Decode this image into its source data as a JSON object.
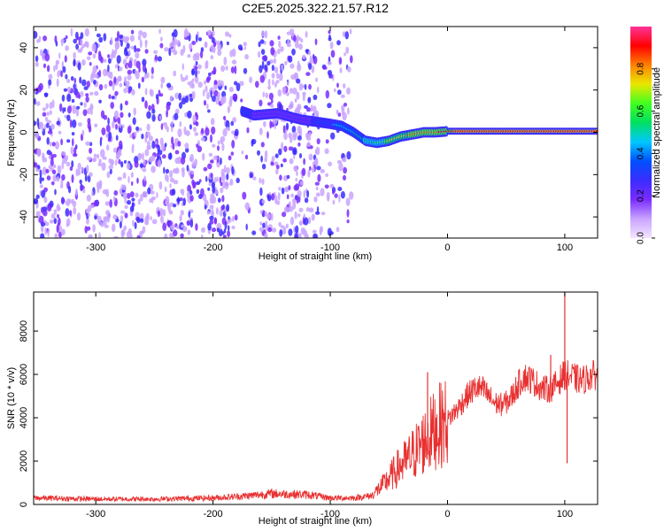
{
  "chart_data": [
    {
      "type": "heatmap",
      "title": "C2E5.2025.322.21.57.R12",
      "xlabel": "Height of straight line (km)",
      "ylabel": "Frequency (Hz)",
      "xlim": [
        -353,
        128
      ],
      "ylim": [
        -50,
        50
      ],
      "xticks": [
        -300,
        -200,
        -100,
        0,
        100
      ],
      "yticks": [
        -40,
        -20,
        0,
        20,
        40
      ],
      "colorbar": {
        "label": "Normalized spectral amplitude",
        "range": [
          0,
          1
        ],
        "ticks": [
          "0.0",
          "0.2",
          "0.4",
          "0.6",
          "0.8"
        ],
        "colors": [
          "#f4e6ff",
          "#c9a4ff",
          "#7a2cff",
          "#3b2cff",
          "#0050ff",
          "#00c8ff",
          "#00e060",
          "#40ff20",
          "#e8e800",
          "#ff8000",
          "#ff0000",
          "#ff3399"
        ]
      },
      "noise_region": {
        "x": [
          -353,
          -82
        ],
        "freq": [
          -50,
          48
        ],
        "amplitude": 0.15
      },
      "signal_track": [
        {
          "x": -175,
          "freq": 10,
          "amplitude": 0.35
        },
        {
          "x": -165,
          "freq": 8,
          "amplitude": 0.3
        },
        {
          "x": -145,
          "freq": 9,
          "amplitude": 0.3
        },
        {
          "x": -125,
          "freq": 6,
          "amplitude": 0.25
        },
        {
          "x": -100,
          "freq": 4,
          "amplitude": 0.4
        },
        {
          "x": -90,
          "freq": 3,
          "amplitude": 0.45
        },
        {
          "x": -80,
          "freq": 0,
          "amplitude": 0.5
        },
        {
          "x": -70,
          "freq": -4,
          "amplitude": 0.55
        },
        {
          "x": -60,
          "freq": -5,
          "amplitude": 0.6
        },
        {
          "x": -50,
          "freq": -4,
          "amplitude": 0.7
        },
        {
          "x": -40,
          "freq": -2,
          "amplitude": 0.75
        },
        {
          "x": -30,
          "freq": -1,
          "amplitude": 0.8
        },
        {
          "x": -20,
          "freq": 0,
          "amplitude": 0.85
        },
        {
          "x": -10,
          "freq": 0,
          "amplitude": 0.85
        },
        {
          "x": 0,
          "freq": 0.5,
          "amplitude": 0.9
        },
        {
          "x": 30,
          "freq": 0.5,
          "amplitude": 0.95
        },
        {
          "x": 60,
          "freq": 0.5,
          "amplitude": 0.95
        },
        {
          "x": 90,
          "freq": 0.5,
          "amplitude": 0.95
        },
        {
          "x": 128,
          "freq": 0.5,
          "amplitude": 0.95
        }
      ]
    },
    {
      "type": "line",
      "title": "",
      "xlabel": "Height of straight line (km)",
      "ylabel": "SNR (10 * v/v)",
      "xlim": [
        -353,
        128
      ],
      "ylim": [
        0,
        9800
      ],
      "xticks": [
        -300,
        -200,
        -100,
        0,
        100
      ],
      "yticks": [
        0,
        2000,
        4000,
        6000,
        8000
      ],
      "color": "#e83030",
      "series": [
        {
          "name": "SNR",
          "x": [
            -353,
            -300,
            -250,
            -200,
            -170,
            -150,
            -120,
            -100,
            -80,
            -65,
            -55,
            -45,
            -40,
            -35,
            -30,
            -25,
            -20,
            -15,
            -10,
            -5,
            0,
            5,
            10,
            15,
            20,
            25,
            30,
            35,
            40,
            45,
            50,
            55,
            60,
            65,
            70,
            75,
            80,
            85,
            90,
            95,
            100,
            105,
            110,
            115,
            120,
            128
          ],
          "y": [
            300,
            250,
            250,
            300,
            400,
            500,
            450,
            300,
            300,
            400,
            900,
            1500,
            1800,
            2000,
            2300,
            2600,
            2900,
            3200,
            3500,
            3700,
            3900,
            4200,
            4500,
            4900,
            5200,
            5400,
            5300,
            5000,
            4700,
            4600,
            4700,
            5000,
            5500,
            5900,
            5800,
            5600,
            5400,
            5300,
            5400,
            5700,
            6000,
            5900,
            5800,
            5700,
            5900,
            6000
          ]
        }
      ],
      "spikes": [
        {
          "x": -17,
          "y": 6100
        },
        {
          "x": 100,
          "y": 9800
        },
        {
          "x": 102,
          "y": 1900
        },
        {
          "x": 88,
          "y": 6900
        }
      ]
    }
  ]
}
